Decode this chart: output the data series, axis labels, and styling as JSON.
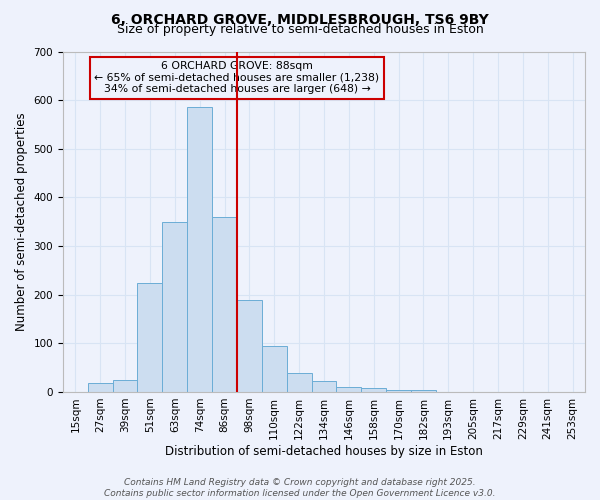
{
  "title_line1": "6, ORCHARD GROVE, MIDDLESBROUGH, TS6 9BY",
  "title_line2": "Size of property relative to semi-detached houses in Eston",
  "xlabel": "Distribution of semi-detached houses by size in Eston",
  "ylabel": "Number of semi-detached properties",
  "categories": [
    "15sqm",
    "27sqm",
    "39sqm",
    "51sqm",
    "63sqm",
    "74sqm",
    "86sqm",
    "98sqm",
    "110sqm",
    "122sqm",
    "134sqm",
    "146sqm",
    "158sqm",
    "170sqm",
    "182sqm",
    "193sqm",
    "205sqm",
    "217sqm",
    "229sqm",
    "241sqm",
    "253sqm"
  ],
  "values": [
    0,
    18,
    25,
    225,
    350,
    585,
    360,
    190,
    95,
    40,
    22,
    10,
    8,
    5,
    3,
    0,
    0,
    0,
    0,
    0,
    0
  ],
  "bar_color": "#ccddf0",
  "bar_edge_color": "#6badd6",
  "property_label": "6 ORCHARD GROVE: 88sqm",
  "pct_smaller": 65,
  "count_smaller": 1238,
  "pct_larger": 34,
  "count_larger": 648,
  "red_line_bin": 6,
  "ylim": [
    0,
    700
  ],
  "yticks": [
    0,
    100,
    200,
    300,
    400,
    500,
    600,
    700
  ],
  "annotation_box_edge_color": "#cc0000",
  "footnote_line1": "Contains HM Land Registry data © Crown copyright and database right 2025.",
  "footnote_line2": "Contains public sector information licensed under the Open Government Licence v3.0.",
  "bg_color": "#eef2fc",
  "grid_color": "#d8e4f4",
  "title_fontsize": 10,
  "subtitle_fontsize": 9,
  "axis_label_fontsize": 8.5,
  "tick_fontsize": 7.5,
  "annot_fontsize": 7.8,
  "footnote_fontsize": 6.5
}
